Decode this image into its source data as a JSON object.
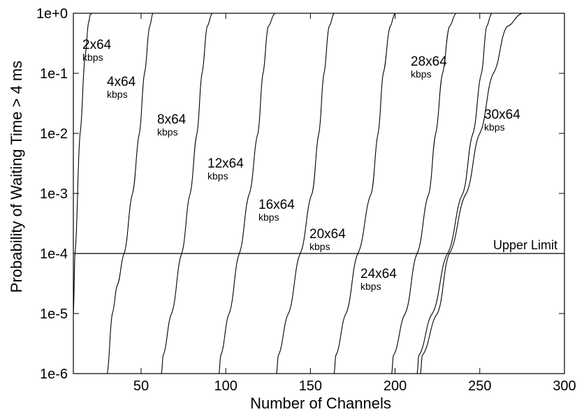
{
  "chart_data": {
    "type": "line",
    "xlabel": "Number of Channels",
    "ylabel": "Probability of Waiting Time > 4 ms",
    "xlim": [
      10,
      300
    ],
    "ylim": [
      1e-06,
      1
    ],
    "y_scale": "log",
    "x_ticks": [
      50,
      100,
      150,
      200,
      250,
      300
    ],
    "x_tick_labels": [
      "50",
      "100",
      "150",
      "200",
      "250",
      "300"
    ],
    "y_ticks": [
      1e-06,
      1e-05,
      0.0001,
      0.001,
      0.01,
      0.1,
      1
    ],
    "y_tick_labels": [
      "1e-6",
      "1e-5",
      "1e-4",
      "1e-3",
      "1e-2",
      "1e-1",
      "1e+0"
    ],
    "grid": false,
    "reference_lines": [
      {
        "label": "Upper Limit",
        "y": 0.0001
      }
    ],
    "series": [
      {
        "name": "2x64",
        "unit": "kbps",
        "x": [
          10,
          11,
          14,
          17,
          19,
          20,
          21
        ],
        "y": [
          1e-05,
          0.0001,
          0.01,
          0.2,
          0.7,
          0.95,
          1
        ]
      },
      {
        "name": "4x64",
        "unit": "kbps",
        "x": [
          30,
          33,
          36,
          40,
          45,
          49,
          52,
          55,
          57
        ],
        "y": [
          1e-06,
          1e-05,
          3e-05,
          0.0001,
          0.001,
          0.01,
          0.1,
          0.6,
          1
        ]
      },
      {
        "name": "8x64",
        "unit": "kbps",
        "x": [
          62,
          63,
          68,
          74,
          79,
          83,
          86,
          89,
          92
        ],
        "y": [
          1e-06,
          2e-06,
          1e-05,
          0.0001,
          0.001,
          0.01,
          0.1,
          0.6,
          1
        ]
      },
      {
        "name": "12x64",
        "unit": "kbps",
        "x": [
          96,
          97,
          102,
          108,
          114,
          119,
          122,
          125,
          129
        ],
        "y": [
          1e-06,
          2e-06,
          1e-05,
          0.0001,
          0.001,
          0.01,
          0.1,
          0.6,
          1
        ]
      },
      {
        "name": "16x64",
        "unit": "kbps",
        "x": [
          130,
          131,
          137,
          144,
          151,
          155,
          158,
          161,
          164
        ],
        "y": [
          1e-06,
          2e-06,
          1e-05,
          0.0001,
          0.001,
          0.01,
          0.1,
          0.6,
          1
        ]
      },
      {
        "name": "20x64",
        "unit": "kbps",
        "x": [
          164,
          165,
          171,
          178,
          186,
          190,
          193,
          197,
          200
        ],
        "y": [
          1e-06,
          2e-06,
          1e-05,
          0.0001,
          0.001,
          0.01,
          0.1,
          0.6,
          1
        ]
      },
      {
        "name": "24x64",
        "unit": "kbps",
        "x": [
          198,
          199,
          206,
          213,
          220,
          224,
          228,
          232,
          236
        ],
        "y": [
          1e-06,
          2e-06,
          1e-05,
          0.0001,
          0.001,
          0.01,
          0.1,
          0.6,
          1
        ]
      },
      {
        "name": "28x64",
        "unit": "kbps",
        "x": [
          213,
          214,
          222,
          231,
          240,
          246,
          251,
          254,
          257
        ],
        "y": [
          1e-06,
          2e-06,
          1e-05,
          0.0001,
          0.001,
          0.01,
          0.1,
          0.6,
          1
        ]
      },
      {
        "name": "30x64",
        "unit": "kbps",
        "x": [
          215,
          216,
          225,
          232,
          242,
          250,
          258,
          266,
          275
        ],
        "y": [
          1e-06,
          2e-06,
          1e-05,
          0.0001,
          0.001,
          0.01,
          0.1,
          0.6,
          1
        ]
      }
    ]
  }
}
